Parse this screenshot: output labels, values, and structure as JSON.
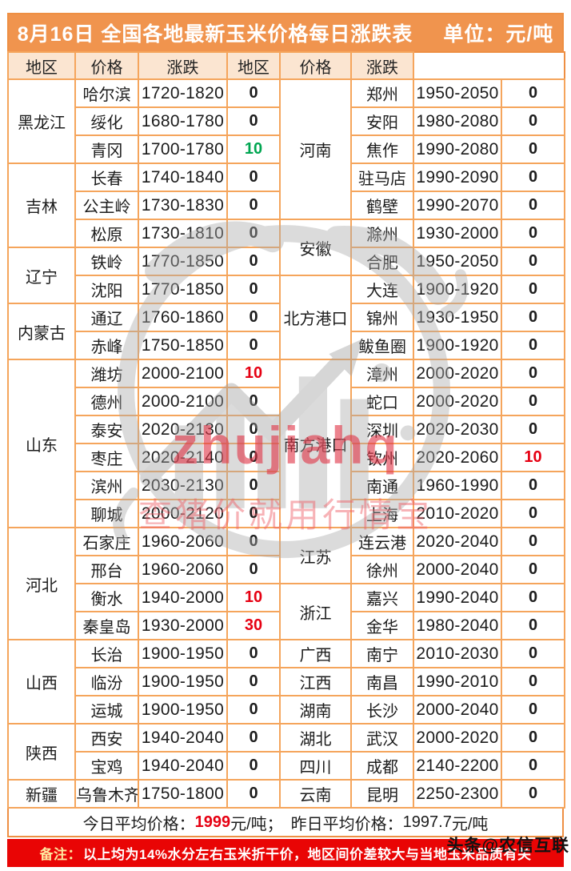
{
  "chart_data": {
    "type": "table",
    "title": "8月16日 全国各地最新玉米价格每日涨跌表",
    "unit": "单位：元/吨",
    "headers": [
      "地区",
      "价格",
      "涨跌",
      "地区",
      "价格",
      "涨跌"
    ],
    "left_groups": [
      {
        "region": "黑龙江",
        "cities": [
          {
            "name": "哈尔滨",
            "price": "1720-1820",
            "change": "0",
            "c": "k"
          },
          {
            "name": "绥化",
            "price": "1680-1780",
            "change": "0",
            "c": "k"
          },
          {
            "name": "青冈",
            "price": "1700-1780",
            "change": "10",
            "c": "g"
          }
        ]
      },
      {
        "region": "吉林",
        "cities": [
          {
            "name": "长春",
            "price": "1740-1840",
            "change": "0",
            "c": "k"
          },
          {
            "name": "公主岭",
            "price": "1730-1830",
            "change": "0",
            "c": "k"
          },
          {
            "name": "松原",
            "price": "1730-1810",
            "change": "0",
            "c": "k"
          }
        ]
      },
      {
        "region": "辽宁",
        "cities": [
          {
            "name": "铁岭",
            "price": "1770-1850",
            "change": "0",
            "c": "k"
          },
          {
            "name": "沈阳",
            "price": "1770-1850",
            "change": "0",
            "c": "k"
          }
        ]
      },
      {
        "region": "内蒙古",
        "cities": [
          {
            "name": "通辽",
            "price": "1760-1860",
            "change": "0",
            "c": "k"
          },
          {
            "name": "赤峰",
            "price": "1750-1850",
            "change": "0",
            "c": "k"
          }
        ]
      },
      {
        "region": "山东",
        "cities": [
          {
            "name": "潍坊",
            "price": "2000-2100",
            "change": "10",
            "c": "r"
          },
          {
            "name": "德州",
            "price": "2000-2100",
            "change": "0",
            "c": "k"
          },
          {
            "name": "泰安",
            "price": "2020-2130",
            "change": "0",
            "c": "k"
          },
          {
            "name": "枣庄",
            "price": "2020-2140",
            "change": "0",
            "c": "k"
          },
          {
            "name": "滨州",
            "price": "2030-2130",
            "change": "0",
            "c": "k"
          },
          {
            "name": "聊城",
            "price": "2000-2120",
            "change": "0",
            "c": "k"
          }
        ]
      },
      {
        "region": "河北",
        "cities": [
          {
            "name": "石家庄",
            "price": "1960-2060",
            "change": "0",
            "c": "k"
          },
          {
            "name": "邢台",
            "price": "1960-2060",
            "change": "0",
            "c": "k"
          },
          {
            "name": "衡水",
            "price": "1940-2000",
            "change": "10",
            "c": "r"
          },
          {
            "name": "秦皇岛",
            "price": "1930-2000",
            "change": "30",
            "c": "r"
          }
        ]
      },
      {
        "region": "山西",
        "cities": [
          {
            "name": "长治",
            "price": "1900-1950",
            "change": "0",
            "c": "k"
          },
          {
            "name": "临汾",
            "price": "1900-1950",
            "change": "0",
            "c": "k"
          },
          {
            "name": "运城",
            "price": "1900-1950",
            "change": "0",
            "c": "k"
          }
        ]
      },
      {
        "region": "陕西",
        "cities": [
          {
            "name": "西安",
            "price": "1940-2040",
            "change": "0",
            "c": "k"
          },
          {
            "name": "宝鸡",
            "price": "1940-2040",
            "change": "0",
            "c": "k"
          }
        ]
      },
      {
        "region": "新疆",
        "cities": [
          {
            "name": "乌鲁木齐",
            "price": "1750-1800",
            "change": "0",
            "c": "k"
          }
        ]
      }
    ],
    "right_groups": [
      {
        "region": "河南",
        "cities": [
          {
            "name": "郑州",
            "price": "1950-2050",
            "change": "0",
            "c": "k"
          },
          {
            "name": "安阳",
            "price": "1980-2080",
            "change": "0",
            "c": "k"
          },
          {
            "name": "焦作",
            "price": "1990-2080",
            "change": "0",
            "c": "k"
          },
          {
            "name": "驻马店",
            "price": "1990-2090",
            "change": "0",
            "c": "k"
          },
          {
            "name": "鹤壁",
            "price": "1990-2070",
            "change": "0",
            "c": "k"
          }
        ]
      },
      {
        "region": "安徽",
        "cities": [
          {
            "name": "滁州",
            "price": "1930-2000",
            "change": "0",
            "c": "k"
          },
          {
            "name": "合肥",
            "price": "1950-2050",
            "change": "0",
            "c": "k"
          }
        ]
      },
      {
        "region": "北方港口",
        "cities": [
          {
            "name": "大连",
            "price": "1900-1920",
            "change": "0",
            "c": "k"
          },
          {
            "name": "锦州",
            "price": "1930-1950",
            "change": "0",
            "c": "k"
          },
          {
            "name": "鲅鱼圈",
            "price": "1900-1920",
            "change": "0",
            "c": "k"
          }
        ]
      },
      {
        "region": "南方港口",
        "cities": [
          {
            "name": "漳州",
            "price": "2000-2020",
            "change": "0",
            "c": "k"
          },
          {
            "name": "蛇口",
            "price": "2000-2020",
            "change": "0",
            "c": "k"
          },
          {
            "name": "深圳",
            "price": "2020-2030",
            "change": "0",
            "c": "k"
          },
          {
            "name": "钦州",
            "price": "2020-2060",
            "change": "10",
            "c": "r"
          },
          {
            "name": "南通",
            "price": "1960-1990",
            "change": "0",
            "c": "k"
          },
          {
            "name": "上海",
            "price": "2010-2020",
            "change": "0",
            "c": "k"
          }
        ]
      },
      {
        "region": "江苏",
        "cities": [
          {
            "name": "连云港",
            "price": "2020-2040",
            "change": "0",
            "c": "k"
          },
          {
            "name": "徐州",
            "price": "2000-2040",
            "change": "0",
            "c": "k"
          }
        ]
      },
      {
        "region": "浙江",
        "cities": [
          {
            "name": "嘉兴",
            "price": "1990-2040",
            "change": "0",
            "c": "k"
          },
          {
            "name": "金华",
            "price": "1980-2040",
            "change": "0",
            "c": "k"
          }
        ]
      },
      {
        "region": "广西",
        "cities": [
          {
            "name": "南宁",
            "price": "2010-2030",
            "change": "0",
            "c": "k"
          }
        ]
      },
      {
        "region": "江西",
        "cities": [
          {
            "name": "南昌",
            "price": "1990-2010",
            "change": "0",
            "c": "k"
          }
        ]
      },
      {
        "region": "湖南",
        "cities": [
          {
            "name": "长沙",
            "price": "2000-2040",
            "change": "0",
            "c": "k"
          }
        ]
      },
      {
        "region": "湖北",
        "cities": [
          {
            "name": "武汉",
            "price": "2000-2020",
            "change": "0",
            "c": "k"
          }
        ]
      },
      {
        "region": "四川",
        "cities": [
          {
            "name": "成都",
            "price": "2140-2200",
            "change": "0",
            "c": "k"
          }
        ]
      },
      {
        "region": "云南",
        "cities": [
          {
            "name": "昆明",
            "price": "2250-2300",
            "change": "0",
            "c": "k"
          }
        ]
      }
    ],
    "summary": {
      "today_label": "今日平均价格：",
      "today_value": "1999",
      "today_tail": "元/吨；",
      "yesterday_label": "昨日平均价格：",
      "yesterday_value": "1997.7",
      "yesterday_tail": "元/吨"
    },
    "note": {
      "prefix": "备注：",
      "body": "以上均为14%水分左右玉米折干价，地区间价差较大与当地玉米品质有关"
    }
  },
  "watermark": {
    "logo_text": "zhujiahq",
    "slogan": "查猪价就用行情宝"
  },
  "branding": {
    "platform": "头条",
    "handle": "@农信互联"
  },
  "colors": {
    "title_bg": "#F0944E",
    "header_bg": "#FBE5D1",
    "border": "#F5A55C",
    "up_red": "#E60012",
    "up_green": "#00A651",
    "note_bg": "#E90505"
  }
}
